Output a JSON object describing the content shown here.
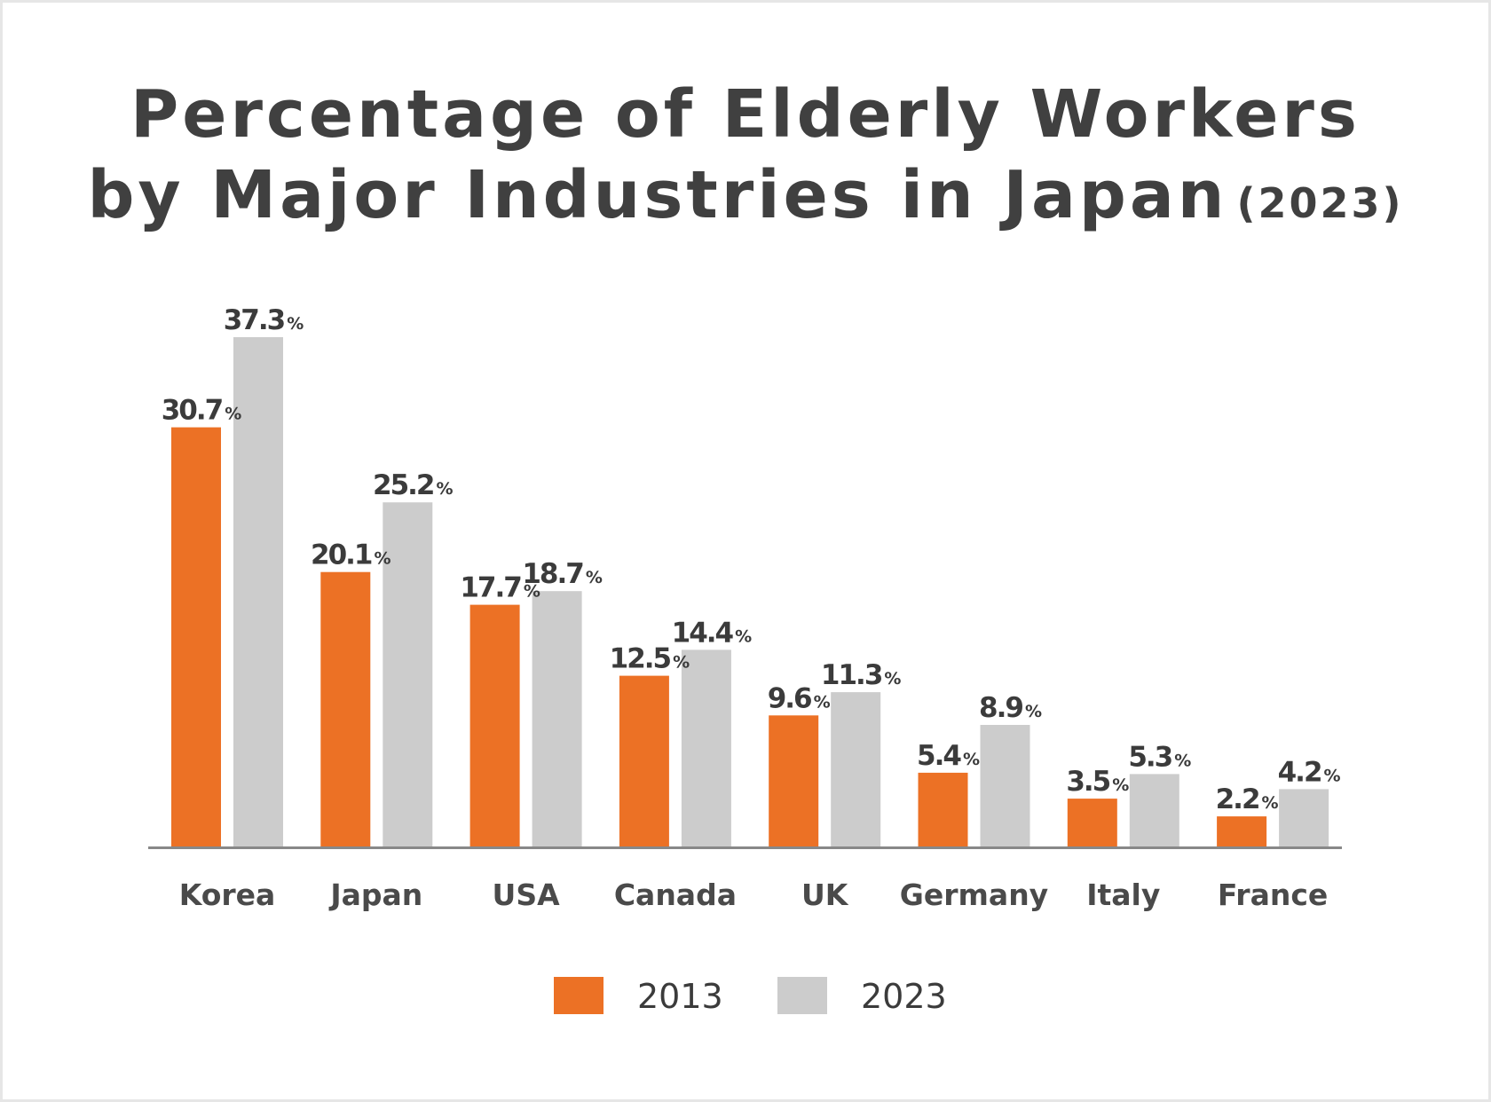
{
  "title": {
    "line1": "Percentage of Elderly Workers",
    "line2_main": "by Major Industries in Japan",
    "line2_year": "(2023)"
  },
  "colors": {
    "series_2013": "#ec7125",
    "series_2023": "#cccccc",
    "axis": "#888888"
  },
  "chart_data": {
    "type": "bar",
    "title": "Percentage of Elderly Workers by Major Industries in Japan (2023)",
    "categories": [
      "Korea",
      "Japan",
      "USA",
      "Canada",
      "UK",
      "Germany",
      "Italy",
      "France"
    ],
    "series": [
      {
        "name": "2013",
        "values": [
          30.7,
          20.1,
          17.7,
          12.5,
          9.6,
          5.4,
          3.5,
          2.2
        ]
      },
      {
        "name": "2023",
        "values": [
          37.3,
          25.2,
          18.7,
          14.4,
          11.3,
          8.9,
          5.3,
          4.2
        ]
      }
    ],
    "value_suffix": "%",
    "ylim": [
      0,
      37.3
    ],
    "xlabel": "",
    "ylabel": "",
    "grid": false,
    "legend": "bottom-center"
  }
}
